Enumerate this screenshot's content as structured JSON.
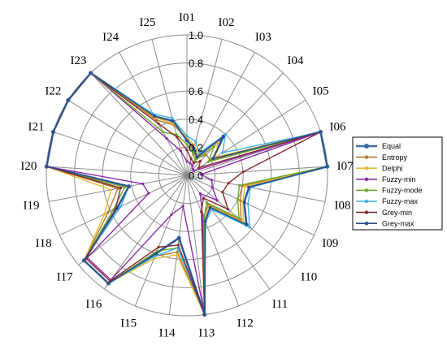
{
  "chart_data": {
    "type": "radar",
    "title": "",
    "categories": [
      "I01",
      "I02",
      "I03",
      "I04",
      "I05",
      "I06",
      "I07",
      "I08",
      "I09",
      "I10",
      "I11",
      "I12",
      "I13",
      "I14",
      "I15",
      "I16",
      "I17",
      "I18",
      "I19",
      "I20",
      "I21",
      "I22",
      "I23",
      "I24",
      "I25"
    ],
    "rlim": [
      0,
      1.0
    ],
    "ticks": [
      "0.0",
      "0.2",
      "0.4",
      "0.6",
      "0.8",
      "1.0"
    ],
    "tick_values": [
      0,
      0.2,
      0.4,
      0.6,
      0.8,
      1.0
    ],
    "grid": true,
    "legend_position": "right",
    "series": [
      {
        "name": "Equal",
        "color": "#3a6ea5",
        "values": [
          0.25,
          0.2,
          0.15,
          0.38,
          0.22,
          1.0,
          1.0,
          0.45,
          0.45,
          0.55,
          0.28,
          0.35,
          1.0,
          0.45,
          0.6,
          0.95,
          0.95,
          0.55,
          0.42,
          1.0,
          1.0,
          1.0,
          1.0,
          0.48,
          0.4
        ]
      },
      {
        "name": "Entropy",
        "color": "#b07a2a",
        "values": [
          0.26,
          0.18,
          0.14,
          0.2,
          0.2,
          1.0,
          1.0,
          0.4,
          0.42,
          0.5,
          0.26,
          0.32,
          1.0,
          0.55,
          0.62,
          0.95,
          0.95,
          0.62,
          0.5,
          1.0,
          1.0,
          1.0,
          1.0,
          0.45,
          0.37
        ]
      },
      {
        "name": "Delphi",
        "color": "#e8b830",
        "values": [
          0.27,
          0.22,
          0.16,
          0.32,
          0.24,
          1.0,
          1.0,
          0.42,
          0.44,
          0.52,
          0.27,
          0.34,
          1.0,
          0.57,
          0.64,
          0.95,
          0.95,
          0.65,
          0.55,
          1.0,
          1.0,
          1.0,
          1.0,
          0.47,
          0.38
        ]
      },
      {
        "name": "Fuzzy-min",
        "color": "#8a2aa8",
        "values": [
          0.1,
          0.09,
          0.08,
          0.06,
          0.06,
          1.0,
          0.1,
          0.18,
          0.2,
          0.28,
          0.16,
          0.3,
          1.0,
          0.22,
          0.3,
          0.92,
          0.92,
          0.3,
          0.32,
          1.0,
          1.0,
          1.0,
          1.0,
          0.3,
          0.18
        ]
      },
      {
        "name": "Fuzzy-mode",
        "color": "#6aaa2a",
        "values": [
          0.22,
          0.17,
          0.12,
          0.28,
          0.18,
          1.0,
          1.0,
          0.38,
          0.4,
          0.48,
          0.24,
          0.33,
          1.0,
          0.52,
          0.58,
          0.95,
          0.95,
          0.58,
          0.45,
          1.0,
          1.0,
          1.0,
          1.0,
          0.35,
          0.3
        ]
      },
      {
        "name": "Fuzzy-max",
        "color": "#3ab0e8",
        "values": [
          0.28,
          0.25,
          0.18,
          0.4,
          0.3,
          1.0,
          1.0,
          0.46,
          0.48,
          0.58,
          0.3,
          0.36,
          1.0,
          0.52,
          0.62,
          0.95,
          0.95,
          0.52,
          0.42,
          1.0,
          1.0,
          1.0,
          1.0,
          0.5,
          0.42
        ]
      },
      {
        "name": "Grey-min",
        "color": "#8a2a2a",
        "values": [
          0.18,
          0.12,
          0.1,
          0.14,
          0.1,
          1.0,
          0.4,
          0.3,
          0.28,
          0.38,
          0.2,
          0.28,
          1.0,
          0.5,
          0.55,
          0.93,
          0.93,
          0.56,
          0.48,
          1.0,
          1.0,
          1.0,
          1.0,
          0.42,
          0.28
        ]
      },
      {
        "name": "Grey-max",
        "color": "#2a4a8a",
        "values": [
          0.25,
          0.2,
          0.15,
          0.38,
          0.22,
          1.0,
          1.0,
          0.45,
          0.45,
          0.55,
          0.28,
          0.35,
          1.0,
          0.45,
          0.6,
          0.95,
          0.95,
          0.55,
          0.42,
          1.0,
          1.0,
          1.0,
          1.0,
          0.48,
          0.4
        ]
      }
    ]
  }
}
